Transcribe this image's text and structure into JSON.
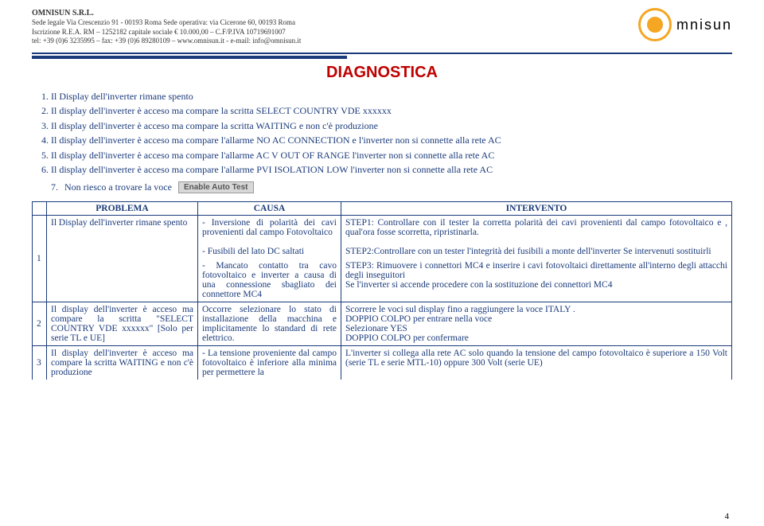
{
  "company": {
    "name": "OMNISUN S.R.L.",
    "line1": "Sede legale Via Crescenzio 91 - 00193 Roma Sede operativa: via Cicerone 60, 00193 Roma",
    "line2": "Iscrizione R.E.A. RM – 1252182 capitale sociale € 10.000,00 – C.F/P.IVA 10719691007",
    "line3": "tel: +39 (0)6 3235995 – fax: +39 (0)6 89280109 – www.omnisun.it - e-mail: info@omnisun.it",
    "logo_text": "mnisun"
  },
  "title": "DIAGNOSTICA",
  "diag_list": {
    "i1": "Il Display dell'inverter rimane spento",
    "i2": "Il display dell'inverter è acceso ma compare la scritta SELECT COUNTRY VDE xxxxxx",
    "i3": "Il display dell'inverter è acceso ma compare la scritta WAITING e non c'è produzione",
    "i4": "Il display dell'inverter è acceso ma compare l'allarme NO AC CONNECTION e l'inverter non si connette alla rete AC",
    "i5": "Il display dell'inverter è acceso ma compare l'allarme AC V OUT OF RANGE l'inverter non si connette alla rete AC",
    "i6": "Il display dell'inverter è acceso ma compare l'allarme PVI ISOLATION LOW l'inverter non si connette alla rete AC",
    "i7": "Non riesco a trovare la voce",
    "btn": "Enable Auto Test"
  },
  "table": {
    "h1": "PROBLEMA",
    "h2": "CAUSA",
    "h3": "INTERVENTO",
    "r1": {
      "n": "1",
      "prob": "Il Display dell'inverter rimane spento",
      "causa_a": "- Inversione di polarità dei cavi provenienti dal campo Fotovoltaico",
      "causa_b": "- Fusibili del lato DC saltati",
      "causa_c": "- Mancato contatto tra cavo fotovoltaico e inverter a causa di una connessione sbagliato dei connettore MC4",
      "int_a": "STEP1: Controllare con il tester la corretta polarità dei cavi provenienti dal campo fotovoltaico e , qual'ora fosse scorretta, ripristinarla.",
      "int_b": "STEP2:Controllare con un tester l'integrità dei fusibili a monte dell'inverter Se intervenuti sostituirli",
      "int_c": "STEP3: Rimuovere i connettori MC4 e inserire i cavi fotovoltaici direttamente all'interno degli attacchi degli inseguitori",
      "int_c2": "Se l'inverter si accende procedere con la sostituzione dei connettori MC4"
    },
    "r2": {
      "n": "2",
      "prob": "Il display dell'inverter è acceso ma compare la scritta \"SELECT COUNTRY VDE xxxxxx\" [Solo per serie TL e UE]",
      "causa": "Occorre selezionare lo stato di installazione della macchina e implicitamente lo standard di rete elettrico.",
      "int_a": "Scorrere le voci sul display fino a raggiungere la voce ITALY .",
      "int_b": "DOPPIO COLPO per entrare nella voce",
      "int_c": "Selezionare YES",
      "int_d": "DOPPIO COLPO per confermare"
    },
    "r3": {
      "n": "3",
      "prob": "Il display dell'inverter è acceso ma compare la scritta WAITING e non c'è produzione",
      "causa": "- La tensione proveniente dal campo fotovoltaico è inferiore alla minima per permettere la",
      "int": "L'inverter si collega alla rete AC solo quando la tensione del campo fotovoltaico è superiore a 150 Volt (serie TL  e serie MTL-10) oppure 300 Volt (serie UE)"
    }
  },
  "page": "4"
}
